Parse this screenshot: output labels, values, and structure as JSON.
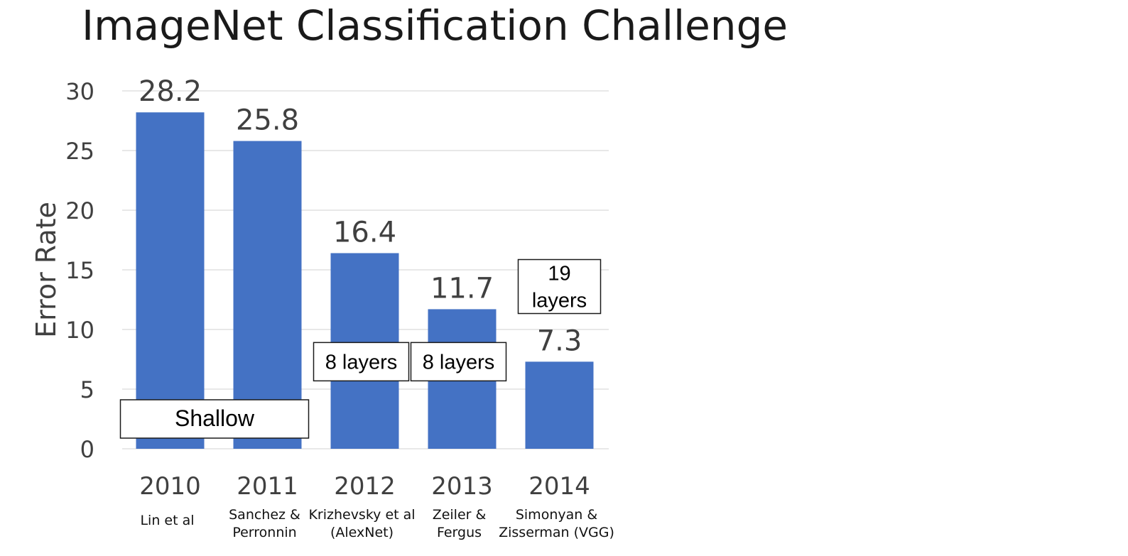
{
  "slide": {
    "title": "ImageNet Classification Challenge"
  },
  "chart_data": {
    "type": "bar",
    "title": "",
    "ylabel": "Error Rate",
    "xlabel": "",
    "ylim": [
      0,
      30
    ],
    "yticks": [
      0,
      5,
      10,
      15,
      20,
      25,
      30
    ],
    "grid": true,
    "bar_color": "#4472C4",
    "categories": [
      "2010",
      "2011",
      "2012",
      "2013",
      "2014"
    ],
    "values": [
      28.2,
      25.8,
      16.4,
      11.7,
      7.3
    ],
    "data_labels": [
      "28.2",
      "25.8",
      "16.4",
      "11.7",
      "7.3"
    ],
    "authors": [
      [
        "Lin et al"
      ],
      [
        "Sanchez &",
        "Perronnin"
      ],
      [
        "Krizhevsky et al",
        "(AlexNet)"
      ],
      [
        "Zeiler &",
        "Fergus"
      ],
      [
        "Simonyan &",
        "Zisserman (VGG)"
      ]
    ],
    "annotations": [
      {
        "text": [
          "Shallow"
        ],
        "categories": [
          "2010",
          "2011"
        ],
        "y": 2.5
      },
      {
        "text": [
          "8 layers"
        ],
        "categories": [
          "2012"
        ],
        "y": 7.3
      },
      {
        "text": [
          "8 layers"
        ],
        "categories": [
          "2013"
        ],
        "y": 7.3
      },
      {
        "text": [
          "19",
          "layers"
        ],
        "categories": [
          "2014"
        ],
        "y": 13.6
      }
    ]
  }
}
